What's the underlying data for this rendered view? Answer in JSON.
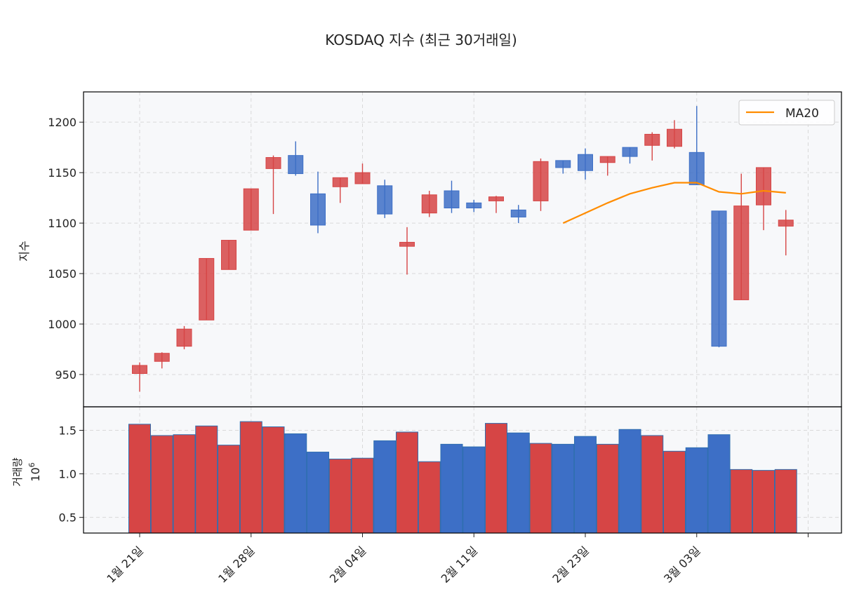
{
  "chart_data": {
    "type": "candlestick",
    "title": "KOSDAQ 지수 (최근 30거래일)",
    "price_panel": {
      "ylabel": "지수",
      "ylim": [
        918,
        1230
      ],
      "yticks": [
        950,
        1000,
        1050,
        1100,
        1150,
        1200
      ],
      "grid": true,
      "legend": {
        "position": "top-right",
        "entries": [
          {
            "name": "MA20",
            "color": "#ff8c00"
          }
        ]
      }
    },
    "volume_panel": {
      "ylabel": "거래량",
      "scale_label": "10",
      "scale_exponent": "6",
      "ylim": [
        0.32,
        1.77
      ],
      "yticks": [
        0.5,
        1.0,
        1.5
      ],
      "ytick_labels": [
        "0.5",
        "1.0",
        "1.5"
      ]
    },
    "x_ticks": [
      {
        "index": 0,
        "label": "1월 21일"
      },
      {
        "index": 5,
        "label": "1월 28일"
      },
      {
        "index": 10,
        "label": "2월 04일"
      },
      {
        "index": 15,
        "label": "2월 11일"
      },
      {
        "index": 20,
        "label": "2월 23일"
      },
      {
        "index": 25,
        "label": "3월 03일"
      },
      {
        "index": 30,
        "label": ""
      }
    ],
    "colors": {
      "up": "#d64545",
      "down": "#3d6fc6",
      "ma": "#ff8c00",
      "bar_edge": "#2f6fb0",
      "panel_bg": "#f7f8fa",
      "grid": "#d9d9d9"
    },
    "candles": [
      {
        "open": 951,
        "high": 962,
        "low": 933,
        "close": 959
      },
      {
        "open": 963,
        "high": 972,
        "low": 956,
        "close": 971
      },
      {
        "open": 978,
        "high": 998,
        "low": 975,
        "close": 995
      },
      {
        "open": 1004,
        "high": 1065,
        "low": 1004,
        "close": 1065
      },
      {
        "open": 1054,
        "high": 1083,
        "low": 1054,
        "close": 1083
      },
      {
        "open": 1093,
        "high": 1134,
        "low": 1093,
        "close": 1134
      },
      {
        "open": 1154,
        "high": 1167,
        "low": 1109,
        "close": 1165
      },
      {
        "open": 1167,
        "high": 1181,
        "low": 1147,
        "close": 1149
      },
      {
        "open": 1129,
        "high": 1151,
        "low": 1090,
        "close": 1098
      },
      {
        "open": 1136,
        "high": 1145,
        "low": 1120,
        "close": 1145
      },
      {
        "open": 1139,
        "high": 1159,
        "low": 1139,
        "close": 1150
      },
      {
        "open": 1137,
        "high": 1143,
        "low": 1105,
        "close": 1109
      },
      {
        "open": 1077,
        "high": 1096,
        "low": 1049,
        "close": 1081
      },
      {
        "open": 1110,
        "high": 1132,
        "low": 1106,
        "close": 1128
      },
      {
        "open": 1132,
        "high": 1142,
        "low": 1110,
        "close": 1115
      },
      {
        "open": 1120,
        "high": 1123,
        "low": 1111,
        "close": 1115
      },
      {
        "open": 1122,
        "high": 1127,
        "low": 1110,
        "close": 1126
      },
      {
        "open": 1113,
        "high": 1118,
        "low": 1100,
        "close": 1106
      },
      {
        "open": 1122,
        "high": 1164,
        "low": 1112,
        "close": 1161
      },
      {
        "open": 1162,
        "high": 1162,
        "low": 1149,
        "close": 1155
      },
      {
        "open": 1168,
        "high": 1174,
        "low": 1143,
        "close": 1152
      },
      {
        "open": 1160,
        "high": 1166,
        "low": 1147,
        "close": 1166
      },
      {
        "open": 1175,
        "high": 1175,
        "low": 1159,
        "close": 1166
      },
      {
        "open": 1177,
        "high": 1190,
        "low": 1162,
        "close": 1188
      },
      {
        "open": 1176,
        "high": 1202,
        "low": 1174,
        "close": 1193
      },
      {
        "open": 1170,
        "high": 1216,
        "low": 1138,
        "close": 1138
      },
      {
        "open": 1112,
        "high": 1112,
        "low": 977,
        "close": 978
      },
      {
        "open": 1024,
        "high": 1149,
        "low": 1024,
        "close": 1117
      },
      {
        "open": 1118,
        "high": 1155,
        "low": 1093,
        "close": 1155
      },
      {
        "open": 1097,
        "high": 1113,
        "low": 1068,
        "close": 1103
      }
    ],
    "volume": [
      1.57,
      1.44,
      1.45,
      1.55,
      1.33,
      1.6,
      1.54,
      1.46,
      1.25,
      1.17,
      1.18,
      1.38,
      1.48,
      1.14,
      1.34,
      1.31,
      1.58,
      1.47,
      1.35,
      1.34,
      1.43,
      1.34,
      1.51,
      1.44,
      1.26,
      1.3,
      1.45,
      1.05,
      1.04,
      1.05
    ],
    "ma20": {
      "name": "MA20",
      "start_index": 19,
      "values": [
        1100,
        1110,
        1120,
        1129,
        1135,
        1140,
        1140,
        1131,
        1129,
        1132,
        1130
      ]
    }
  }
}
